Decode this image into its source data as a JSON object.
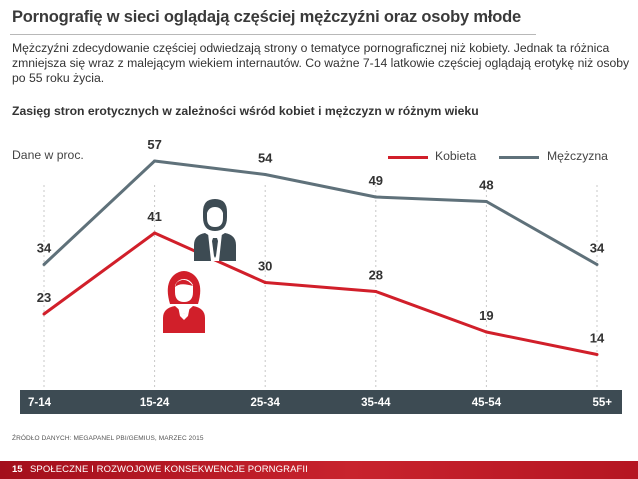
{
  "header": {
    "title": "Pornografię w sieci oglądają częściej mężczyźni oraz osoby młode",
    "description": "Mężczyźni zdecydowanie częściej odwiedzają strony o tematyce pornograficznej niż kobiety. Jednak ta różnica zmniejsza się wraz z malejącym wiekiem internautów. Co ważne 7-14 latkowie częściej oglądają erotykę niż osoby po 55 roku życia.",
    "subtitle": "Zasięg stron erotycznych w zależności wśród kobiet i mężczyzn w różnym wieku"
  },
  "unit_label": "Dane w proc.",
  "legend": {
    "female": "Kobieta",
    "male": "Mężczyzna"
  },
  "colors": {
    "female": "#d11f2a",
    "male": "#5f717a",
    "axis_bar": "#3d4b53"
  },
  "icons": {
    "male": "businessman-icon",
    "female": "woman-icon"
  },
  "source": "ŹRÓDŁO DANYCH: MEGAPANEL PBI/GEMIUS, MARZEC 2015",
  "footer": {
    "page_number": "15",
    "section": "SPOŁECZNE I ROZWOJOWE KONSEKWENCJE PORNGRAFII"
  },
  "chart_data": {
    "type": "line",
    "title": "Zasięg stron erotycznych w zależności wśród kobiet i mężczyzn w różnym wieku",
    "xlabel": "",
    "ylabel": "Dane w proc.",
    "categories": [
      "7-14",
      "15-24",
      "25-34",
      "35-44",
      "45-54",
      "55+"
    ],
    "series": [
      {
        "name": "Kobieta",
        "key": "female",
        "values": [
          23,
          41,
          30,
          28,
          19,
          14
        ]
      },
      {
        "name": "Mężczyzna",
        "key": "male",
        "values": [
          34,
          57,
          54,
          49,
          48,
          34
        ]
      }
    ],
    "ylim": [
      5,
      65
    ],
    "grid": false,
    "legend_position": "top-right"
  }
}
